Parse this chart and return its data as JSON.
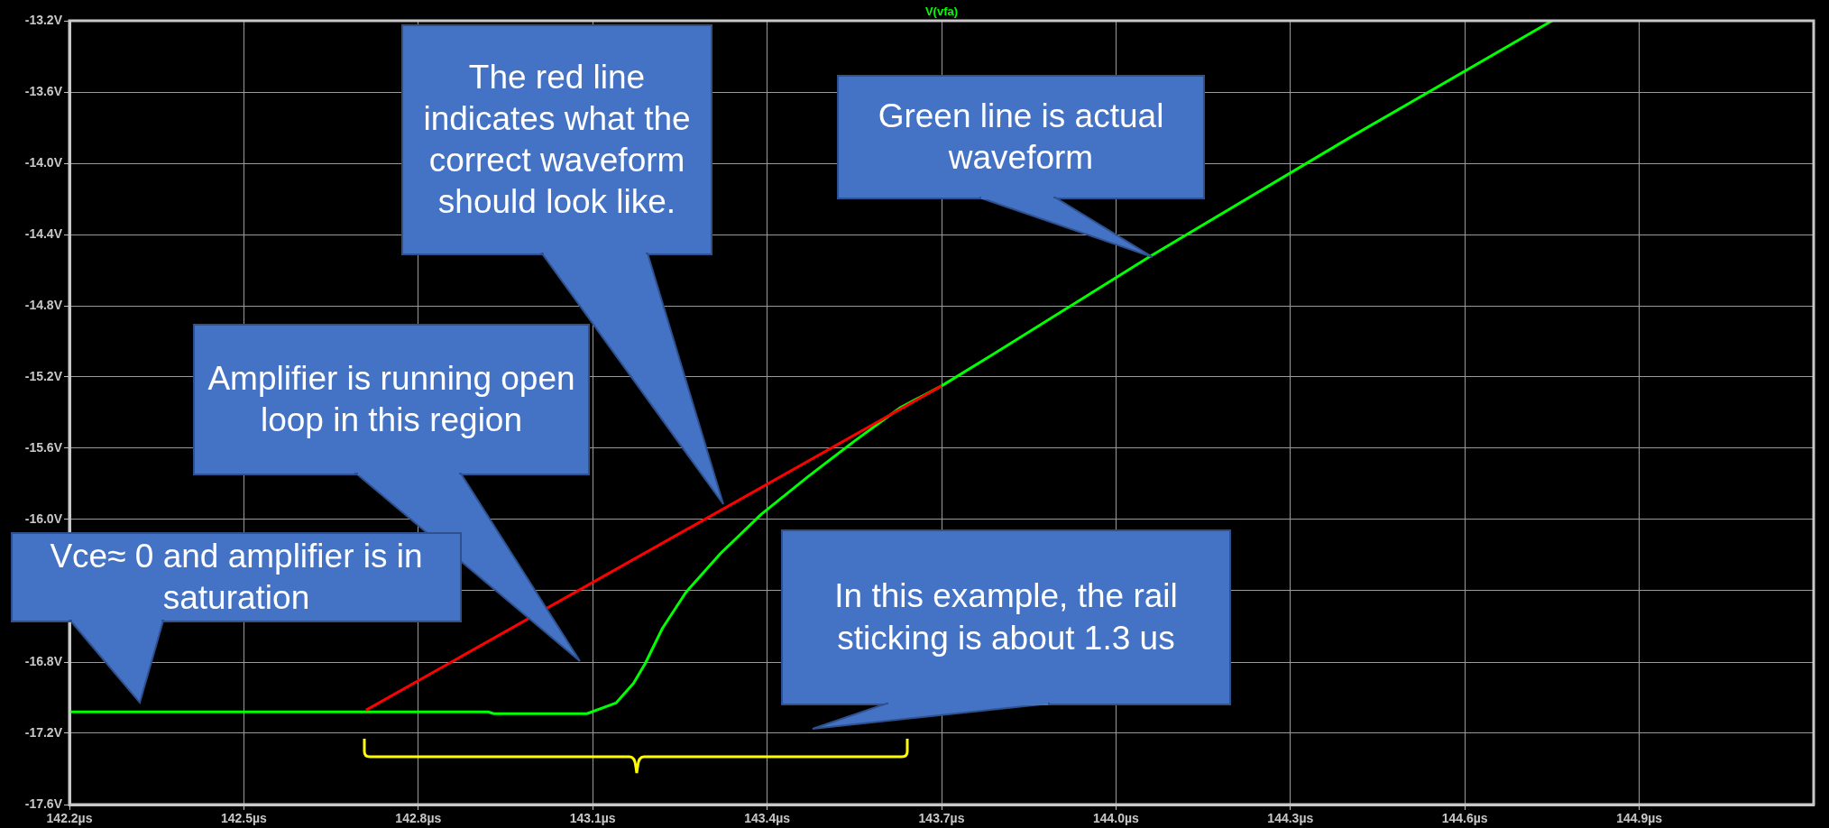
{
  "chart_data": {
    "type": "line",
    "series": [
      {
        "name": "V(vfa)",
        "color": "#00ff00",
        "x": [
          142.2,
          142.92,
          142.93,
          143.09,
          143.14,
          143.17,
          143.19,
          143.22,
          143.26,
          143.32,
          143.39,
          143.47,
          143.55,
          143.63,
          143.7,
          143.79,
          144.06,
          144.4,
          144.75
        ],
        "values": [
          -17.08,
          -17.08,
          -17.09,
          -17.09,
          -17.03,
          -16.92,
          -16.81,
          -16.61,
          -16.41,
          -16.19,
          -15.97,
          -15.76,
          -15.56,
          -15.37,
          -15.25,
          -15.07,
          -14.52,
          -13.86,
          -13.2
        ]
      },
      {
        "color": "#ff0000",
        "x": [
          142.71,
          143.7
        ],
        "values": [
          -17.07,
          -15.25
        ]
      }
    ],
    "xlim": [
      142.2,
      145.2
    ],
    "xticks": [
      {
        "value": 142.2,
        "label": "142.2µs"
      },
      {
        "value": 142.5,
        "label": "142.5µs"
      },
      {
        "value": 142.8,
        "label": "142.8µs"
      },
      {
        "value": 143.1,
        "label": "143.1µs"
      },
      {
        "value": 143.4,
        "label": "143.4µs"
      },
      {
        "value": 143.7,
        "label": "143.7µs"
      },
      {
        "value": 144.0,
        "label": "144.0µs"
      },
      {
        "value": 144.3,
        "label": "144.3µs"
      },
      {
        "value": 144.6,
        "label": "144.6µs"
      },
      {
        "value": 144.9,
        "label": "144.9µs"
      }
    ],
    "ylim": [
      -17.6,
      -13.2
    ],
    "yticks": [
      {
        "value": -17.6,
        "label": "-17.6V"
      },
      {
        "value": -17.2,
        "label": "-17.2V"
      },
      {
        "value": -16.8,
        "label": "-16.8V"
      },
      {
        "value": -16.4,
        "label": null
      },
      {
        "value": -16.0,
        "label": "-16.0V"
      },
      {
        "value": -15.6,
        "label": "-15.6V"
      },
      {
        "value": -15.2,
        "label": "-15.2V"
      },
      {
        "value": -14.8,
        "label": "-14.8V"
      },
      {
        "value": -14.4,
        "label": "-14.4V"
      },
      {
        "value": -14.0,
        "label": "-14.0V"
      },
      {
        "value": -13.6,
        "label": "-13.6V"
      },
      {
        "value": -13.2,
        "label": "-13.2V"
      }
    ],
    "grid": true,
    "legend": "top",
    "marker": "none",
    "line_style": "solid",
    "annotations": [
      "The red line indicates what the correct waveform should look like.",
      "Green line is actual waveform",
      "Amplifier is running open loop in this region",
      "Vce≈ 0 and amplifier is in saturation",
      "In this example, the rail sticking is about 1.3 us"
    ]
  }
}
